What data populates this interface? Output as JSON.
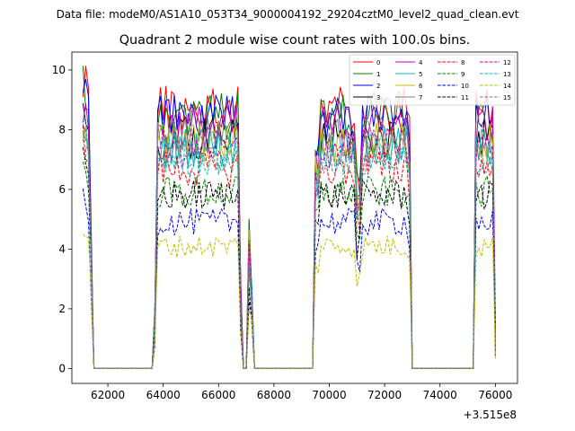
{
  "chart_data": {
    "type": "line",
    "suptitle": "Data file: modeM0/AS1A10_053T34_9000004192_29204cztM0_level2_quad_clean.evt",
    "title": "Quadrant 2 module wise count rates with 100.0s bins.",
    "xlabel": "",
    "ylabel": "",
    "offset_label": "+3.515e8",
    "xlim": [
      60700,
      76800
    ],
    "ylim": [
      -0.5,
      10.6
    ],
    "xticks": [
      62000,
      64000,
      66000,
      68000,
      70000,
      72000,
      74000,
      76000
    ],
    "xtick_labels": [
      "62000",
      "64000",
      "66000",
      "68000",
      "70000",
      "72000",
      "74000",
      "76000"
    ],
    "yticks": [
      0,
      2,
      4,
      6,
      8,
      10
    ],
    "ytick_labels": [
      "0",
      "2",
      "4",
      "6",
      "8",
      "10"
    ],
    "legend_position": "upper right",
    "segments": [
      {
        "start": 61100,
        "end": 61400
      },
      {
        "start": 63700,
        "end": 66800
      },
      {
        "start": 67100,
        "end": 67200
      },
      {
        "start": 69500,
        "end": 72900
      },
      {
        "start": 75300,
        "end": 76000
      }
    ],
    "gaps": [
      [
        61500,
        63600
      ],
      [
        67000,
        67000
      ],
      [
        67300,
        69400
      ],
      [
        73000,
        75200
      ]
    ],
    "series": [
      {
        "name": "0",
        "color": "#ff0000",
        "dash": "solid",
        "level": 8.7,
        "start_level": 9.9
      },
      {
        "name": "1",
        "color": "#008000",
        "dash": "solid",
        "level": 8.5,
        "start_level": 9.5
      },
      {
        "name": "2",
        "color": "#0000ff",
        "dash": "solid",
        "level": 8.4,
        "start_level": 9.2
      },
      {
        "name": "3",
        "color": "#000000",
        "dash": "solid",
        "level": 7.7,
        "start_level": 8.2
      },
      {
        "name": "4",
        "color": "#bf00bf",
        "dash": "solid",
        "level": 8.1,
        "start_level": 8.8
      },
      {
        "name": "5",
        "color": "#00bfbf",
        "dash": "solid",
        "level": 7.4,
        "start_level": 8.0
      },
      {
        "name": "6",
        "color": "#bfbf00",
        "dash": "solid",
        "level": 7.6,
        "start_level": 8.2
      },
      {
        "name": "7",
        "color": "#808080",
        "dash": "solid",
        "level": 7.7,
        "start_level": 8.3
      },
      {
        "name": "8",
        "color": "#ff0000",
        "dash": "dashed",
        "level": 6.7,
        "start_level": 7.6
      },
      {
        "name": "9",
        "color": "#008000",
        "dash": "dashed",
        "level": 5.9,
        "start_level": 6.6
      },
      {
        "name": "10",
        "color": "#0000ff",
        "dash": "dashed",
        "level": 4.9,
        "start_level": 5.7
      },
      {
        "name": "11",
        "color": "#000000",
        "dash": "dashed",
        "level": 5.8,
        "start_level": 6.9
      },
      {
        "name": "12",
        "color": "#bf00bf",
        "dash": "dashed",
        "level": 7.4,
        "start_level": 8.5
      },
      {
        "name": "13",
        "color": "#00bfbf",
        "dash": "dashed",
        "level": 7.1,
        "start_level": 8.0
      },
      {
        "name": "14",
        "color": "#bfbf00",
        "dash": "dashed",
        "level": 4.1,
        "start_level": 4.7
      },
      {
        "name": "15",
        "color": "#808080",
        "dash": "dashed",
        "level": 7.2,
        "start_level": 7.9
      }
    ]
  }
}
